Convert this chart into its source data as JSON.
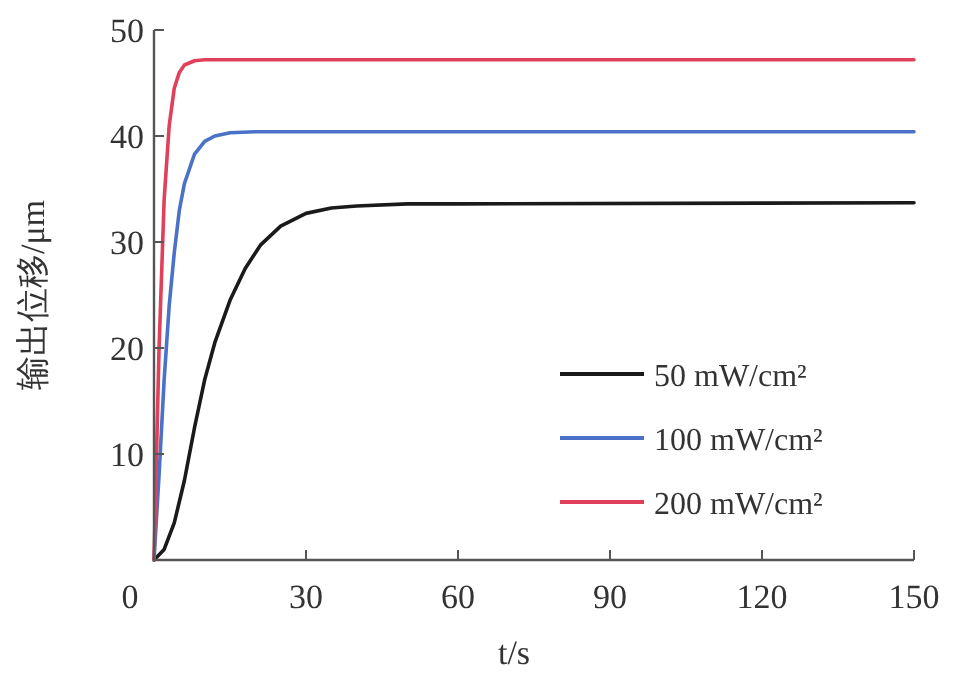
{
  "chart_data": {
    "type": "line",
    "xlabel": "t/s",
    "ylabel": "输出位移/μm",
    "xlim": [
      0,
      150
    ],
    "xticks": [
      0,
      30,
      60,
      90,
      120,
      150
    ],
    "ylim": [
      0,
      50
    ],
    "yticks": [
      {
        "value": 0,
        "label": null
      },
      10,
      20,
      30,
      40,
      50
    ],
    "grid": false,
    "legend": "right",
    "marker": "none",
    "line_style": "solid",
    "series": [
      {
        "name": "50 mW/cm²",
        "color": "#1a1a1a",
        "x": [
          0,
          2,
          4,
          6,
          8,
          10,
          12,
          15,
          18,
          21,
          25,
          30,
          35,
          40,
          50,
          60,
          150
        ],
        "values": [
          0,
          1,
          3.5,
          7.5,
          12.5,
          17,
          20.5,
          24.5,
          27.5,
          29.7,
          31.5,
          32.7,
          33.2,
          33.4,
          33.6,
          33.6,
          33.7
        ]
      },
      {
        "name": "100 mW/cm²",
        "color": "#4a72c8",
        "x": [
          0,
          1,
          2,
          3,
          4,
          5,
          6,
          8,
          10,
          12,
          15,
          20,
          150
        ],
        "values": [
          0,
          8,
          17,
          24,
          29,
          33,
          35.5,
          38.3,
          39.5,
          40,
          40.3,
          40.4,
          40.4
        ]
      },
      {
        "name": "200 mW/cm²",
        "color": "#e0405a",
        "x": [
          0,
          1,
          2,
          3,
          4,
          5,
          6,
          8,
          10,
          150
        ],
        "values": [
          0,
          20,
          34,
          41,
          44.5,
          46,
          46.7,
          47.1,
          47.2,
          47.2
        ]
      }
    ]
  }
}
